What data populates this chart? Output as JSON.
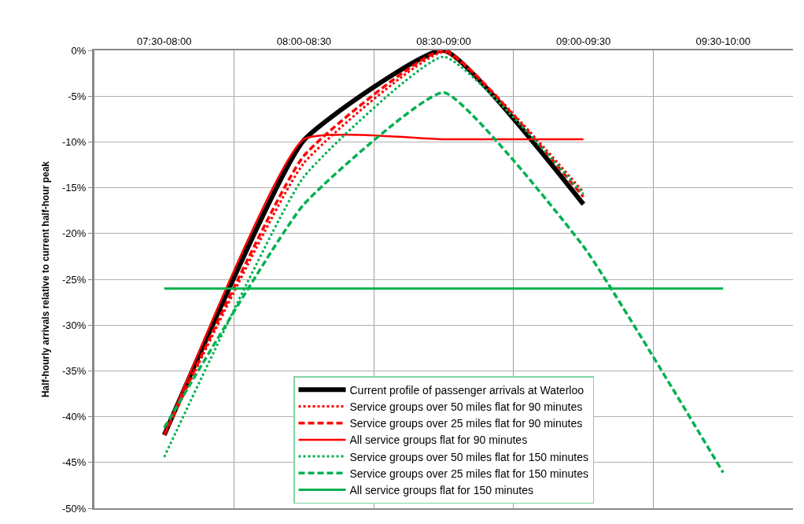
{
  "chart_data": {
    "type": "line",
    "ylabel": "Half-hourly arrivals relative to current half-hour peak",
    "categories": [
      "07:30-08:00",
      "08:00-08:30",
      "08:30-09:00",
      "09:00-09:30",
      "09:30-10:00"
    ],
    "ylim": [
      -50,
      0
    ],
    "yticks": [
      {
        "value": 0,
        "label": "0%"
      },
      {
        "value": -5,
        "label": "-5%"
      },
      {
        "value": -10,
        "label": "-10%"
      },
      {
        "value": -15,
        "label": "-15%"
      },
      {
        "value": -20,
        "label": "-20%"
      },
      {
        "value": -25,
        "label": "-25%"
      },
      {
        "value": -30,
        "label": "-30%"
      },
      {
        "value": -35,
        "label": "-35%"
      },
      {
        "value": -40,
        "label": "-40%"
      },
      {
        "value": -45,
        "label": "-45%"
      },
      {
        "value": -50,
        "label": "-50%"
      }
    ],
    "grid": true,
    "legend": "bottom",
    "series": [
      {
        "name": "Current profile of passenger arrivals at Waterloo",
        "color": "#000000",
        "line_style": "solid",
        "values": [
          -42,
          -9.8,
          0,
          -16.8,
          null
        ]
      },
      {
        "name": "Service groups over 50 miles flat for 90 minutes",
        "color": "#ff0000",
        "line_style": "dotted",
        "values": [
          -42,
          -12.3,
          -0.2,
          -15.5,
          null
        ]
      },
      {
        "name": "Service groups over 25 miles flat for 90 minutes",
        "color": "#ff0000",
        "line_style": "dashed",
        "values": [
          -42,
          -11.5,
          0,
          -16,
          null
        ]
      },
      {
        "name": "All service groups flat for 90 minutes",
        "color": "#ff0000",
        "line_style": "solid",
        "values": [
          -42,
          -9.7,
          -9.7,
          -9.7,
          null
        ]
      },
      {
        "name": "Service groups over 50 miles flat for 150 minutes",
        "color": "#00b050",
        "line_style": "dotted",
        "values": [
          -44.4,
          -13.8,
          -0.7,
          -15.7,
          null
        ]
      },
      {
        "name": "Service groups over 25 miles flat for 150 minutes",
        "color": "#00b050",
        "line_style": "dashed",
        "values": [
          -41.2,
          -16.8,
          -4.6,
          -21.4,
          -46.1
        ]
      },
      {
        "name": "All service groups flat for 150 minutes",
        "color": "#00b050",
        "line_style": "solid",
        "values": [
          -26,
          -26,
          -26,
          -26,
          -26
        ]
      }
    ]
  }
}
